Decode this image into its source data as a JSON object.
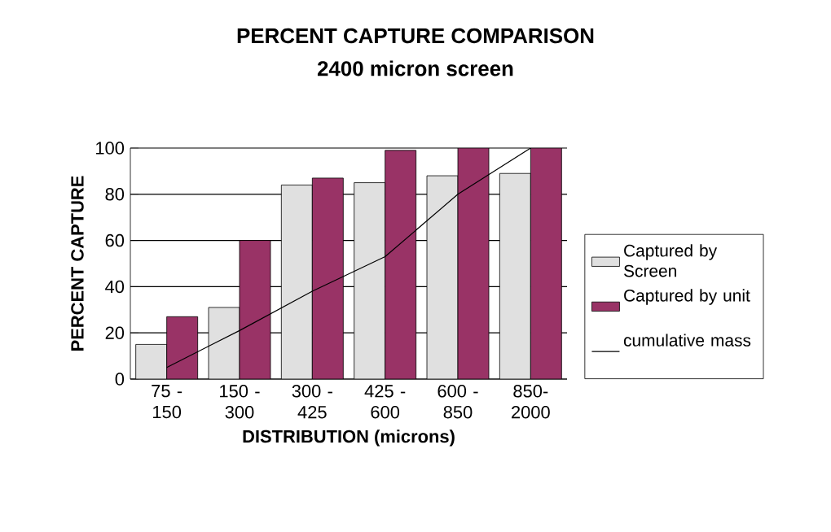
{
  "chart_data": {
    "type": "bar",
    "title": "PERCENT CAPTURE COMPARISON",
    "subtitle": "2400 micron screen",
    "xlabel": "DISTRIBUTION (microns)",
    "ylabel": "PERCENT CAPTURE",
    "categories": [
      "75 - 150",
      "150 - 300",
      "300 - 425",
      "425 - 600",
      "600 - 850",
      "850-2000"
    ],
    "series": [
      {
        "name": "Captured by Screen",
        "color": "#e0e0e0",
        "values": [
          15,
          31,
          84,
          85,
          88,
          89
        ]
      },
      {
        "name": "Captured by unit",
        "color": "#993366",
        "values": [
          27,
          60,
          87,
          99,
          100,
          100
        ]
      },
      {
        "name": "cumulative mass",
        "type": "line",
        "color": "#000000",
        "values": [
          5,
          21,
          38,
          53,
          80,
          100
        ]
      }
    ],
    "ylim": [
      0,
      100
    ],
    "yticks": [
      0,
      20,
      40,
      60,
      80,
      100
    ],
    "grid": "y",
    "legend": "right",
    "marker": "none",
    "line_style": "solid"
  }
}
